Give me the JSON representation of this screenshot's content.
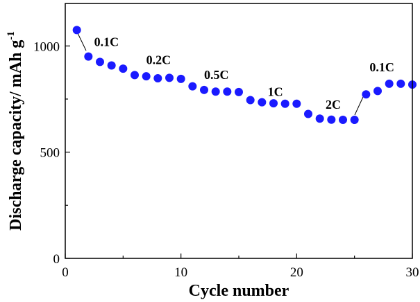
{
  "chart_data": {
    "type": "scatter",
    "xlabel": "Cycle number",
    "ylabel": "Discharge capacity/ mAh g",
    "ylabel_superscript": "-1",
    "xlim": [
      0,
      30
    ],
    "ylim": [
      0,
      1200
    ],
    "x_ticks": [
      0,
      10,
      20,
      30
    ],
    "y_ticks": [
      0,
      500,
      1000
    ],
    "grid": false,
    "marker_color": "#1a1aff",
    "series": [
      {
        "x": [
          1,
          2,
          3,
          4,
          5,
          6,
          7,
          8,
          9,
          10,
          11,
          12,
          13,
          14,
          15,
          16,
          17,
          18,
          19,
          20,
          21,
          22,
          23,
          24,
          25,
          26,
          27,
          28,
          29,
          30
        ],
        "values": [
          1075,
          950,
          925,
          908,
          893,
          863,
          857,
          848,
          850,
          845,
          810,
          793,
          785,
          785,
          783,
          745,
          735,
          730,
          728,
          728,
          680,
          658,
          653,
          652,
          652,
          772,
          788,
          822,
          822,
          818
        ]
      }
    ],
    "annotations": [
      {
        "text": "0.1C",
        "x": 2.5,
        "y": 1000
      },
      {
        "text": "0.2C",
        "x": 7.0,
        "y": 915
      },
      {
        "text": "0.5C",
        "x": 12.0,
        "y": 845
      },
      {
        "text": "1C",
        "x": 17.5,
        "y": 765
      },
      {
        "text": "2C",
        "x": 22.5,
        "y": 705
      },
      {
        "text": "0.1C",
        "x": 26.3,
        "y": 880
      }
    ]
  }
}
